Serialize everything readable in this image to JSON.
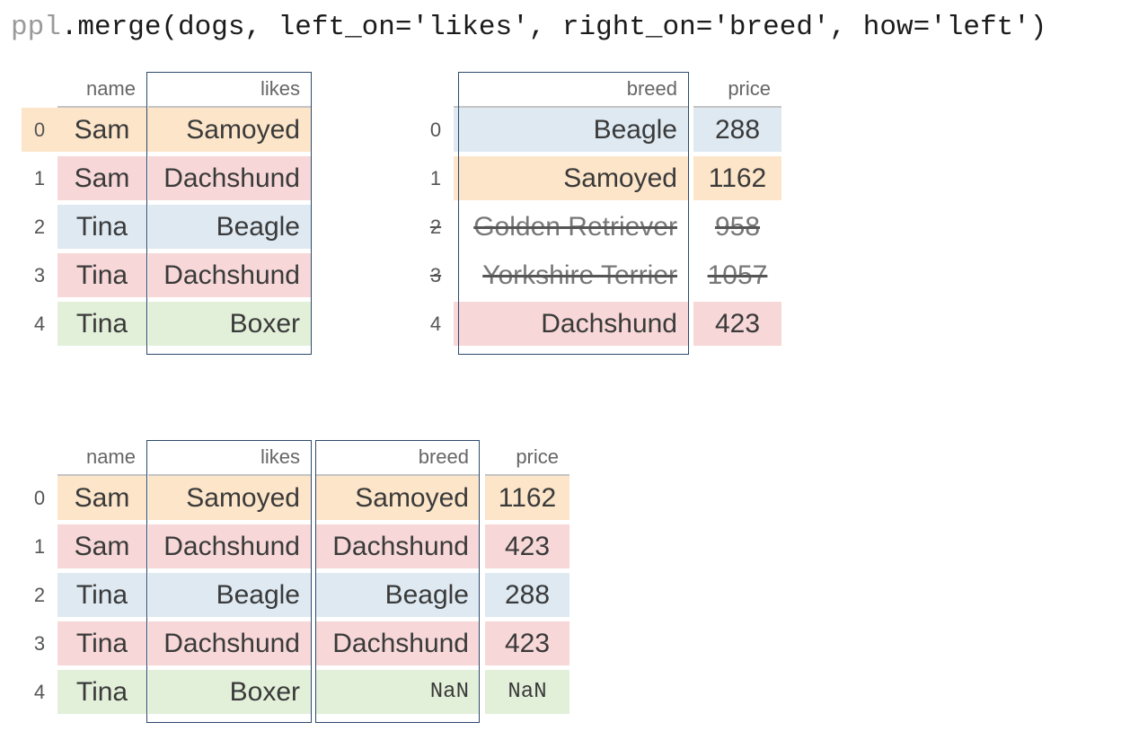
{
  "code": {
    "prefix": "ppl",
    "rest": ".merge(dogs, left_on='likes', right_on='breed', how='left')"
  },
  "left_table": {
    "headers": [
      "name",
      "likes"
    ],
    "index": [
      "0",
      "1",
      "2",
      "3",
      "4"
    ],
    "rows": [
      {
        "name": "Sam",
        "likes": "Samoyed",
        "color": "orange"
      },
      {
        "name": "Sam",
        "likes": "Dachshund",
        "color": "red"
      },
      {
        "name": "Tina",
        "likes": "Beagle",
        "color": "blue"
      },
      {
        "name": "Tina",
        "likes": "Dachshund",
        "color": "red"
      },
      {
        "name": "Tina",
        "likes": "Boxer",
        "color": "green"
      }
    ]
  },
  "right_table": {
    "headers": [
      "breed",
      "price"
    ],
    "index": [
      "0",
      "1",
      "2",
      "3",
      "4"
    ],
    "rows": [
      {
        "breed": "Beagle",
        "price": "288",
        "color": "blue",
        "dropped": false
      },
      {
        "breed": "Samoyed",
        "price": "1162",
        "color": "orange",
        "dropped": false
      },
      {
        "breed": "Golden Retriever",
        "price": "958",
        "color": "plain",
        "dropped": true
      },
      {
        "breed": "Yorkshire Terrier",
        "price": "1057",
        "color": "plain",
        "dropped": true
      },
      {
        "breed": "Dachshund",
        "price": "423",
        "color": "red",
        "dropped": false
      }
    ]
  },
  "result_table": {
    "headers": [
      "name",
      "likes",
      "breed",
      "price"
    ],
    "index": [
      "0",
      "1",
      "2",
      "3",
      "4"
    ],
    "rows": [
      {
        "name": "Sam",
        "likes": "Samoyed",
        "breed": "Samoyed",
        "price": "1162",
        "color": "orange"
      },
      {
        "name": "Sam",
        "likes": "Dachshund",
        "breed": "Dachshund",
        "price": "423",
        "color": "red"
      },
      {
        "name": "Tina",
        "likes": "Beagle",
        "breed": "Beagle",
        "price": "288",
        "color": "blue"
      },
      {
        "name": "Tina",
        "likes": "Dachshund",
        "breed": "Dachshund",
        "price": "423",
        "color": "red"
      },
      {
        "name": "Tina",
        "likes": "Boxer",
        "breed": "NaN",
        "price": "NaN",
        "color": "green"
      }
    ]
  }
}
